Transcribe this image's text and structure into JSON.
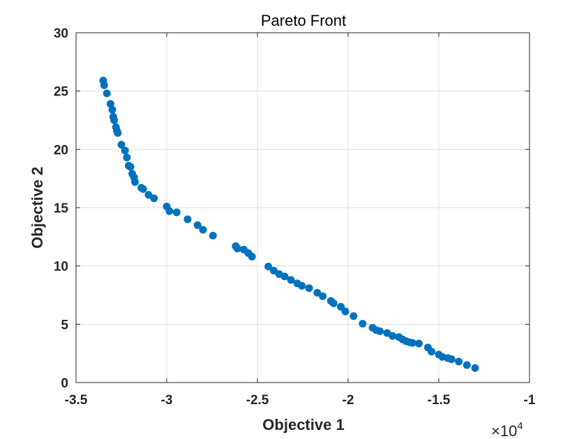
{
  "chart_data": {
    "type": "scatter",
    "title": "Pareto Front",
    "xlabel": "Objective 1",
    "ylabel": "Objective 2",
    "x_multiplier": "×10",
    "x_multiplier_exponent": "4",
    "xlim": [
      -3.5,
      -1
    ],
    "ylim": [
      0,
      30
    ],
    "xticks": [
      "-3.5",
      "-3",
      "-2.5",
      "-2",
      "-1.5",
      "-1"
    ],
    "yticks": [
      "0",
      "5",
      "10",
      "15",
      "20",
      "25",
      "30"
    ],
    "grid": true,
    "marker_color": "#0072BD",
    "x": [
      -3.35,
      -3.345,
      -3.33,
      -3.31,
      -3.3,
      -3.295,
      -3.29,
      -3.28,
      -3.275,
      -3.27,
      -3.25,
      -3.23,
      -3.22,
      -3.21,
      -3.2,
      -3.19,
      -3.18,
      -3.175,
      -3.14,
      -3.13,
      -3.1,
      -3.07,
      -3.0,
      -2.985,
      -2.945,
      -2.885,
      -2.83,
      -2.8,
      -2.745,
      -2.62,
      -2.61,
      -2.575,
      -2.55,
      -2.53,
      -2.44,
      -2.41,
      -2.38,
      -2.35,
      -2.315,
      -2.28,
      -2.255,
      -2.215,
      -2.17,
      -2.14,
      -2.095,
      -2.08,
      -2.04,
      -2.015,
      -1.97,
      -1.92,
      -1.865,
      -1.845,
      -1.825,
      -1.785,
      -1.755,
      -1.72,
      -1.7,
      -1.68,
      -1.66,
      -1.645,
      -1.61,
      -1.56,
      -1.54,
      -1.5,
      -1.48,
      -1.45,
      -1.43,
      -1.39,
      -1.345,
      -1.3
    ],
    "y": [
      25.9,
      25.5,
      24.8,
      23.9,
      23.4,
      22.8,
      22.5,
      21.9,
      21.6,
      21.4,
      20.4,
      19.9,
      19.3,
      18.6,
      18.5,
      17.9,
      17.6,
      17.2,
      16.7,
      16.6,
      16.1,
      15.8,
      15.1,
      14.7,
      14.6,
      14.0,
      13.5,
      13.1,
      12.6,
      11.7,
      11.5,
      11.4,
      11.1,
      10.8,
      9.95,
      9.6,
      9.3,
      9.1,
      8.8,
      8.5,
      8.3,
      8.1,
      7.7,
      7.4,
      7.0,
      6.8,
      6.5,
      6.1,
      5.7,
      5.05,
      4.7,
      4.5,
      4.4,
      4.25,
      4.0,
      3.9,
      3.7,
      3.55,
      3.45,
      3.4,
      3.35,
      3.0,
      2.65,
      2.4,
      2.2,
      2.1,
      2.0,
      1.8,
      1.5,
      1.25
    ]
  }
}
